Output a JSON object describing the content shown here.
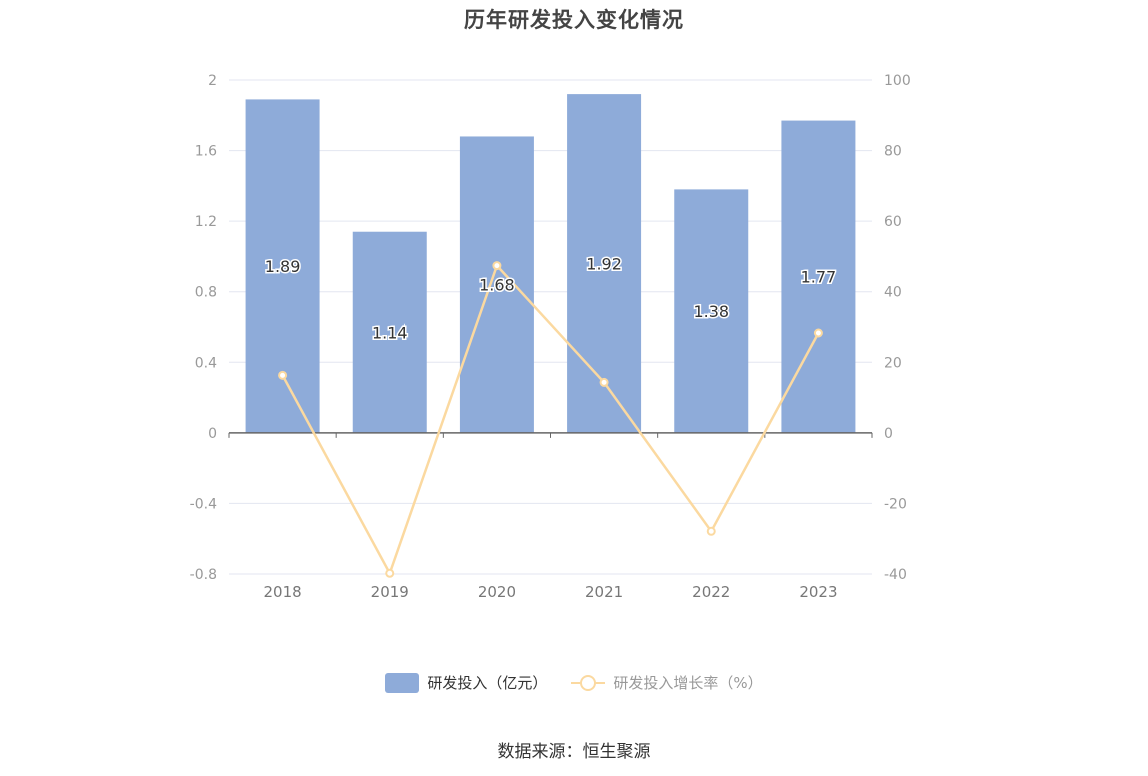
{
  "chart_data": {
    "type": "bar",
    "title": "历年研发投入变化情况",
    "categories": [
      "2018",
      "2019",
      "2020",
      "2021",
      "2022",
      "2023"
    ],
    "series": [
      {
        "name": "研发投入（亿元）",
        "type": "bar",
        "axis": "left",
        "values": [
          1.89,
          1.14,
          1.68,
          1.92,
          1.38,
          1.77
        ],
        "labels": [
          "1.89",
          "1.14",
          "1.68",
          "1.92",
          "1.38",
          "1.77"
        ]
      },
      {
        "name": "研发投入增长率（%）",
        "type": "line",
        "axis": "right",
        "values": [
          16.3,
          -39.8,
          47.4,
          14.3,
          -27.9,
          28.3
        ]
      }
    ],
    "y_left": {
      "ylim": [
        -0.8,
        2
      ],
      "ticks": [
        "2",
        "1.6",
        "1.2",
        "0.8",
        "0.4",
        "0",
        "-0.4",
        "-0.8"
      ]
    },
    "y_right": {
      "ylim": [
        -40,
        100
      ],
      "ticks": [
        "100",
        "80",
        "60",
        "40",
        "20",
        "0",
        "-20",
        "-40"
      ]
    },
    "grid": true,
    "legend_position": "bottom-center",
    "colors": {
      "bar": "#8eabd9",
      "line": "#fbd9a0",
      "grid": "#e3e6f0",
      "axis": "#666666",
      "tick_text": "#999999"
    }
  },
  "source": "数据来源：恒生聚源"
}
